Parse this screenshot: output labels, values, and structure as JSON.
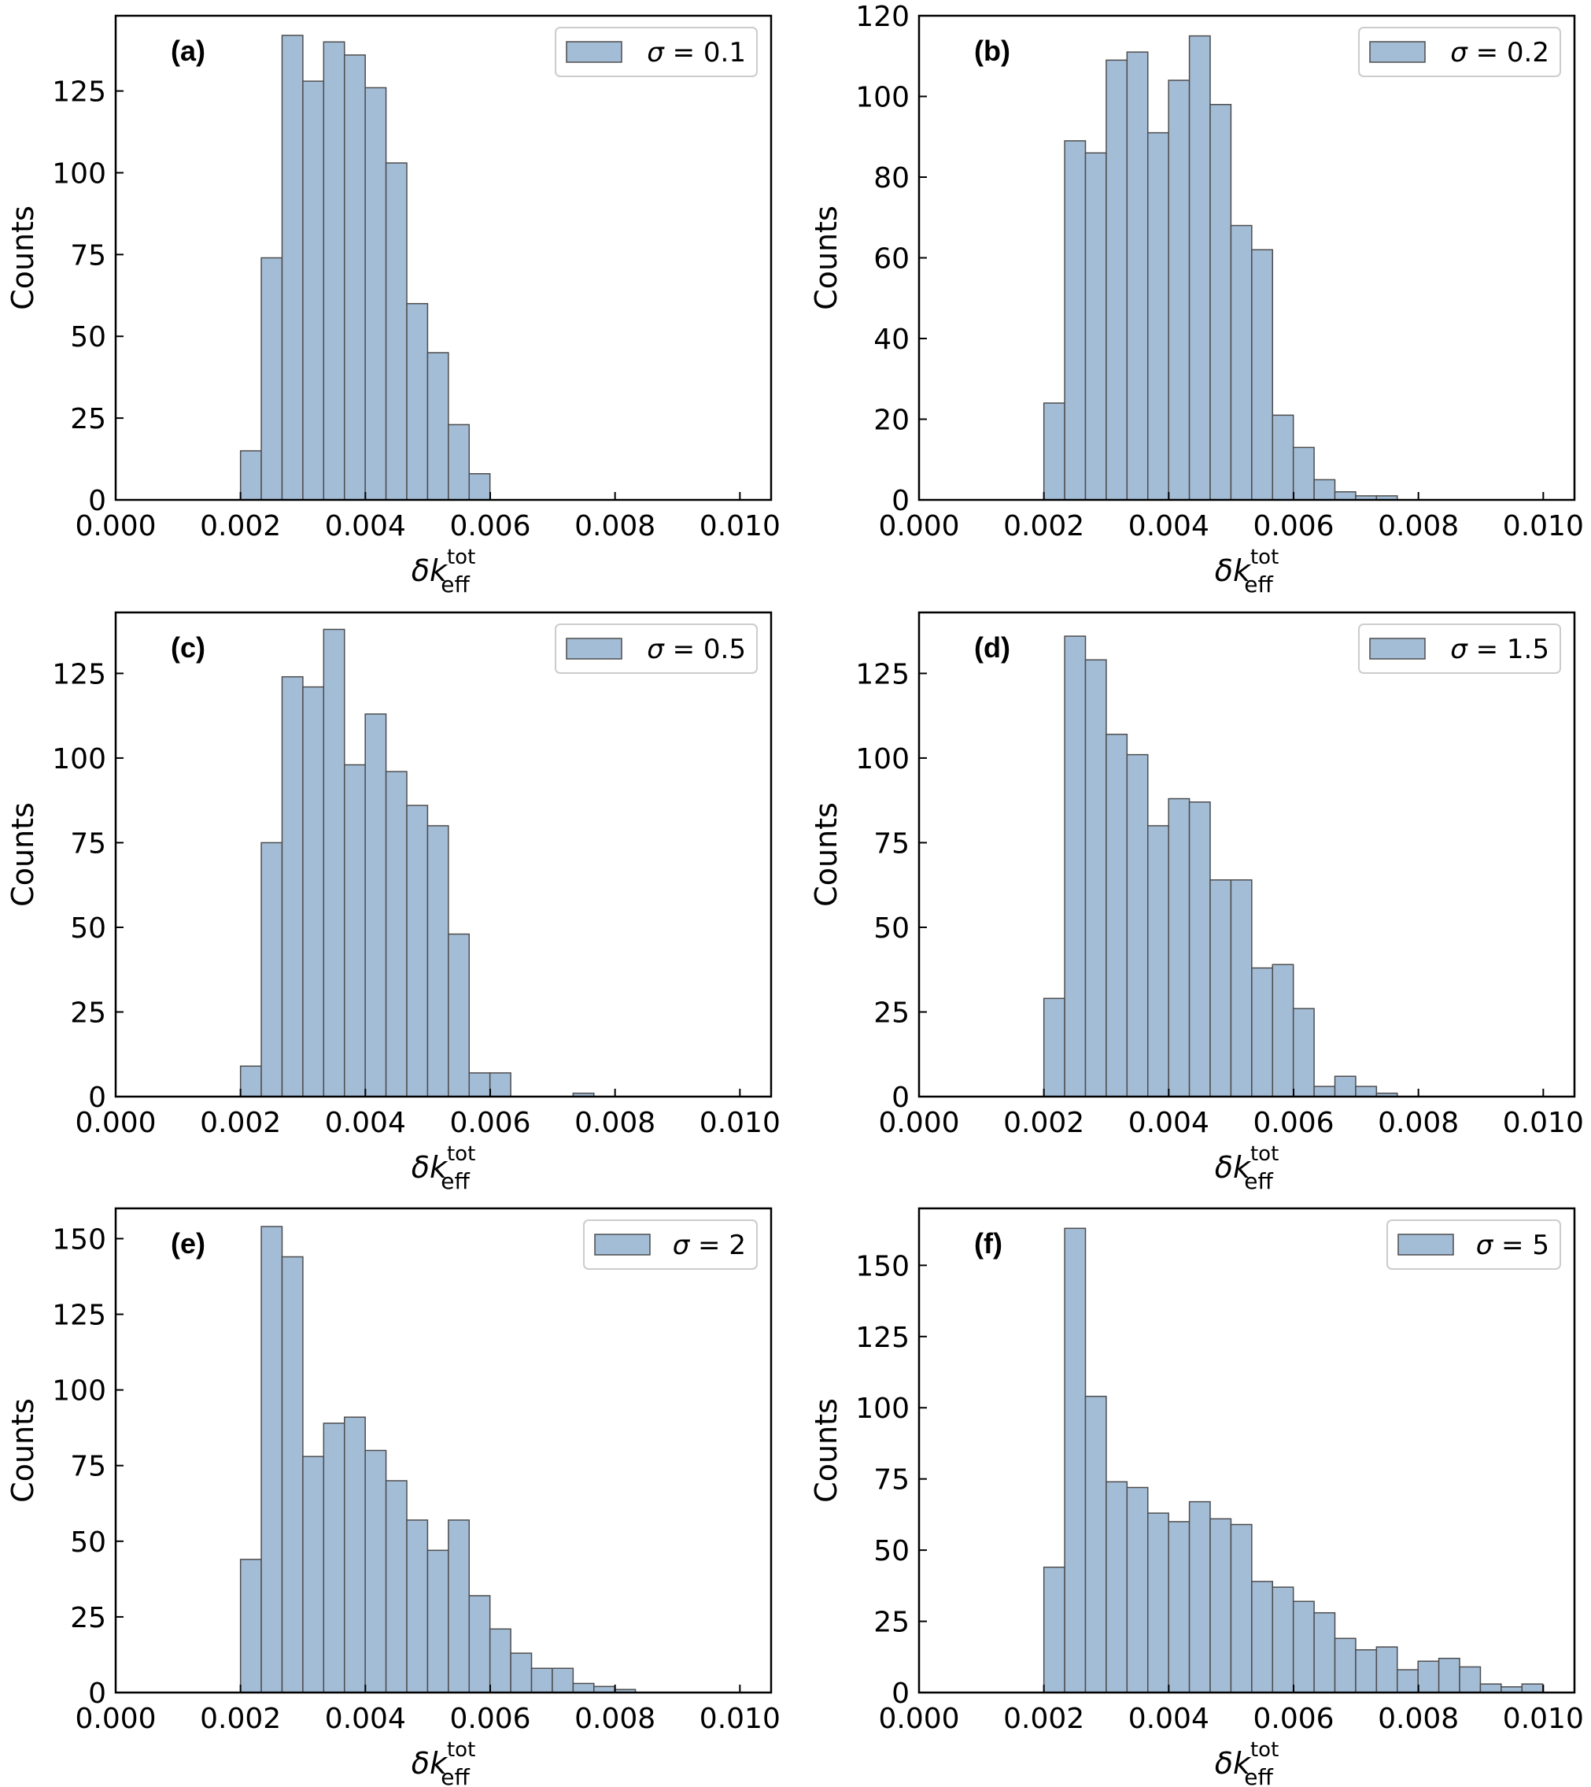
{
  "chart_data": [
    {
      "type": "bar",
      "panel": "(a)",
      "legend": "σ = 0.1",
      "xlabel": "δk_eff^tot",
      "ylabel": "Counts",
      "xlim": [
        0,
        0.0105
      ],
      "ylim": [
        0,
        148
      ],
      "xticks": [
        "0.000",
        "0.002",
        "0.004",
        "0.006",
        "0.008",
        "0.010"
      ],
      "yticks": [
        0,
        25,
        50,
        75,
        100,
        125
      ],
      "bin_start": 0.002,
      "bin_width": 0.000333,
      "values": [
        15,
        74,
        142,
        128,
        140,
        136,
        126,
        103,
        60,
        45,
        23,
        8
      ]
    },
    {
      "type": "bar",
      "panel": "(b)",
      "legend": "σ = 0.2",
      "xlabel": "δk_eff^tot",
      "ylabel": "Counts",
      "xlim": [
        0,
        0.0105
      ],
      "ylim": [
        0,
        120
      ],
      "xticks": [
        "0.000",
        "0.002",
        "0.004",
        "0.006",
        "0.008",
        "0.010"
      ],
      "yticks": [
        0,
        20,
        40,
        60,
        80,
        100,
        120
      ],
      "bin_start": 0.002,
      "bin_width": 0.000333,
      "values": [
        24,
        89,
        86,
        109,
        111,
        91,
        104,
        115,
        98,
        68,
        62,
        21,
        13,
        5,
        2,
        1,
        1
      ]
    },
    {
      "type": "bar",
      "panel": "(c)",
      "legend": "σ = 0.5",
      "xlabel": "δk_eff^tot",
      "ylabel": "Counts",
      "xlim": [
        0,
        0.0105
      ],
      "ylim": [
        0,
        143
      ],
      "xticks": [
        "0.000",
        "0.002",
        "0.004",
        "0.006",
        "0.008",
        "0.010"
      ],
      "yticks": [
        0,
        25,
        50,
        75,
        100,
        125
      ],
      "bin_start": 0.002,
      "bin_width": 0.000333,
      "values": [
        9,
        75,
        124,
        121,
        138,
        98,
        113,
        96,
        86,
        80,
        48,
        7,
        7,
        0,
        0,
        0,
        1
      ]
    },
    {
      "type": "bar",
      "panel": "(d)",
      "legend": "σ = 1.5",
      "xlabel": "δk_eff^tot",
      "ylabel": "Counts",
      "xlim": [
        0,
        0.0105
      ],
      "ylim": [
        0,
        143
      ],
      "xticks": [
        "0.000",
        "0.002",
        "0.004",
        "0.006",
        "0.008",
        "0.010"
      ],
      "yticks": [
        0,
        25,
        50,
        75,
        100,
        125
      ],
      "bin_start": 0.002,
      "bin_width": 0.000333,
      "values": [
        29,
        136,
        129,
        107,
        101,
        80,
        88,
        87,
        64,
        64,
        38,
        39,
        26,
        3,
        6,
        3,
        1
      ]
    },
    {
      "type": "bar",
      "panel": "(e)",
      "legend": "σ = 2",
      "xlabel": "δk_eff^tot",
      "ylabel": "Counts",
      "xlim": [
        0,
        0.0105
      ],
      "ylim": [
        0,
        160
      ],
      "xticks": [
        "0.000",
        "0.002",
        "0.004",
        "0.006",
        "0.008",
        "0.010"
      ],
      "yticks": [
        0,
        25,
        50,
        75,
        100,
        125,
        150
      ],
      "bin_start": 0.002,
      "bin_width": 0.000333,
      "values": [
        44,
        154,
        144,
        78,
        89,
        91,
        80,
        70,
        57,
        47,
        57,
        32,
        21,
        13,
        8,
        8,
        3,
        2,
        1
      ]
    },
    {
      "type": "bar",
      "panel": "(f)",
      "legend": "σ = 5",
      "xlabel": "δk_eff^tot",
      "ylabel": "Counts",
      "xlim": [
        0,
        0.0105
      ],
      "ylim": [
        0,
        170
      ],
      "xticks": [
        "0.000",
        "0.002",
        "0.004",
        "0.006",
        "0.008",
        "0.010"
      ],
      "yticks": [
        0,
        25,
        50,
        75,
        100,
        125,
        150
      ],
      "bin_start": 0.002,
      "bin_width": 0.000333,
      "values": [
        44,
        163,
        104,
        74,
        72,
        63,
        60,
        67,
        61,
        59,
        39,
        37,
        32,
        28,
        19,
        15,
        16,
        8,
        11,
        12,
        9,
        3,
        2,
        3
      ]
    }
  ]
}
